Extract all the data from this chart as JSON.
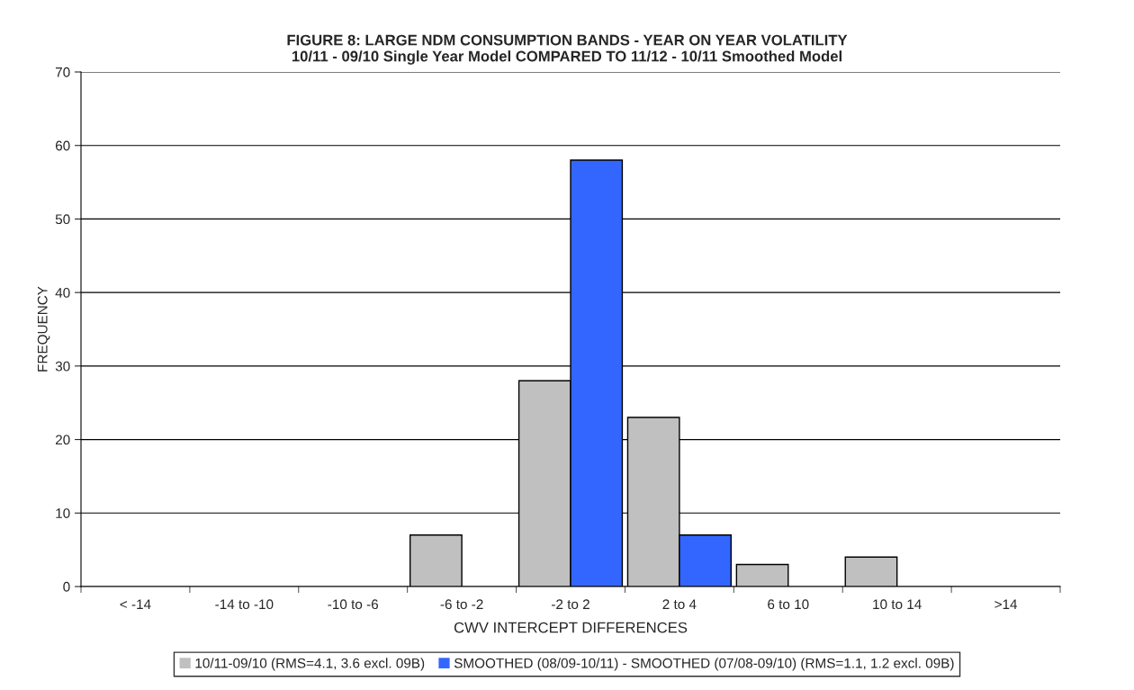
{
  "chart_data": {
    "type": "bar",
    "title": "FIGURE 8: LARGE NDM CONSUMPTION BANDS - YEAR ON YEAR VOLATILITY\n10/11 - 09/10 Single Year Model COMPARED TO 11/12 - 10/11 Smoothed Model",
    "xlabel": "CWV INTERCEPT DIFFERENCES",
    "ylabel": "FREQUENCY",
    "categories": [
      "< -14",
      "-14 to -10",
      "-10 to -6",
      "-6 to -2",
      "-2 to 2",
      "2 to 4",
      "6 to 10",
      "10 to 14",
      ">14"
    ],
    "series": [
      {
        "name": "10/11-09/10 (RMS=4.1, 3.6 excl. 09B)",
        "color": "#c0c0c0",
        "values": [
          0,
          0,
          0,
          7,
          28,
          23,
          3,
          4,
          0
        ]
      },
      {
        "name": "SMOOTHED (08/09-10/11) - SMOOTHED (07/08-09/10) (RMS=1.1, 1.2 excl. 09B)",
        "color": "#3366ff",
        "values": [
          0,
          0,
          0,
          0,
          58,
          7,
          0,
          0,
          0
        ]
      }
    ],
    "ylim": [
      0,
      70
    ],
    "yticks": [
      0,
      10,
      20,
      30,
      40,
      50,
      60,
      70
    ],
    "grid": "y",
    "legend": "bottom"
  }
}
